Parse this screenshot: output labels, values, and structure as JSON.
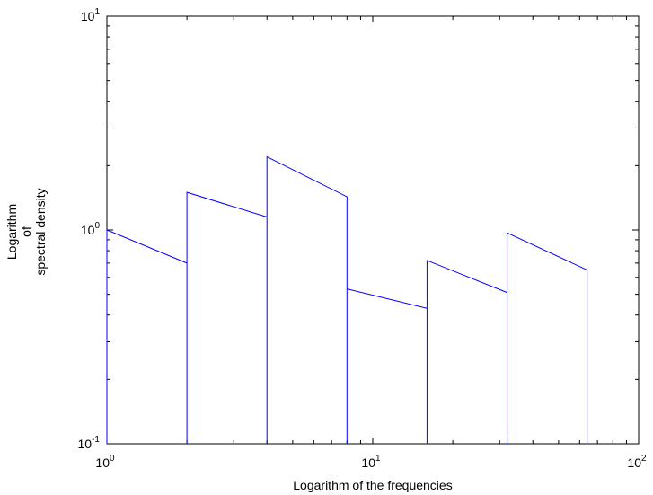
{
  "chart_data": {
    "type": "line",
    "title": "",
    "xlabel": "Logarithm of the frequencies",
    "ylabel_lines": [
      "Logarithm",
      "of",
      "spectral density"
    ],
    "xscale": "log",
    "yscale": "log",
    "xlim": [
      1,
      100
    ],
    "ylim": [
      0.1,
      10
    ],
    "x_ticks": [
      {
        "base": "10",
        "exp": "0",
        "value": 1
      },
      {
        "base": "10",
        "exp": "1",
        "value": 10
      },
      {
        "base": "10",
        "exp": "2",
        "value": 100
      }
    ],
    "y_ticks": [
      {
        "base": "10",
        "exp": "-1",
        "value": 0.1
      },
      {
        "base": "10",
        "exp": "0",
        "value": 1
      },
      {
        "base": "10",
        "exp": "1",
        "value": 10
      }
    ],
    "grid": false,
    "series": [
      {
        "color": "#0000ff",
        "x": [
          1,
          1,
          2,
          2,
          2,
          4,
          4,
          4,
          8,
          8,
          8,
          16,
          16,
          16,
          32,
          32,
          32,
          64,
          64
        ],
        "y": [
          0.1,
          1.0,
          0.7,
          0.1,
          1.5,
          1.15,
          0.1,
          2.2,
          1.43,
          0.1,
          0.53,
          0.43,
          0.1,
          0.72,
          0.51,
          0.1,
          0.97,
          0.65,
          0.1
        ]
      }
    ]
  }
}
